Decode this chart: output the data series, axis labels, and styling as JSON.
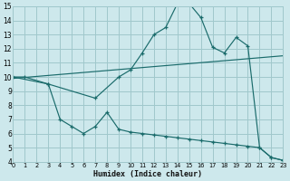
{
  "bg_color": "#cde8ec",
  "grid_color": "#a0c8cc",
  "line_color": "#1a6b6b",
  "line1_x": [
    0,
    1,
    3,
    7,
    9,
    10,
    11,
    12,
    13,
    14,
    15,
    16,
    17,
    18,
    19,
    20,
    21,
    22,
    23
  ],
  "line1_y": [
    10.0,
    10.0,
    9.5,
    8.5,
    10.0,
    10.5,
    11.7,
    13.0,
    13.5,
    15.2,
    15.2,
    14.2,
    12.1,
    11.7,
    12.8,
    12.2,
    5.0,
    4.3,
    4.1
  ],
  "line2_x": [
    0,
    23
  ],
  "line2_y": [
    9.9,
    11.5
  ],
  "line3_x": [
    0,
    3,
    4,
    5,
    6,
    7,
    8,
    9,
    10,
    11,
    12,
    13,
    14,
    15,
    16,
    17,
    18,
    19,
    20,
    21,
    22,
    23
  ],
  "line3_y": [
    10.0,
    9.5,
    7.0,
    6.5,
    6.0,
    6.5,
    7.5,
    6.3,
    6.1,
    6.0,
    5.9,
    5.8,
    5.7,
    5.6,
    5.5,
    5.4,
    5.3,
    5.2,
    5.1,
    5.0,
    4.3,
    4.1
  ],
  "xlim": [
    0,
    23
  ],
  "ylim": [
    4,
    15
  ],
  "yticks": [
    4,
    5,
    6,
    7,
    8,
    9,
    10,
    11,
    12,
    13,
    14,
    15
  ],
  "xticks": [
    0,
    1,
    2,
    3,
    4,
    5,
    6,
    7,
    8,
    9,
    10,
    11,
    12,
    13,
    14,
    15,
    16,
    17,
    18,
    19,
    20,
    21,
    22,
    23
  ],
  "xlabel": "Humidex (Indice chaleur)"
}
